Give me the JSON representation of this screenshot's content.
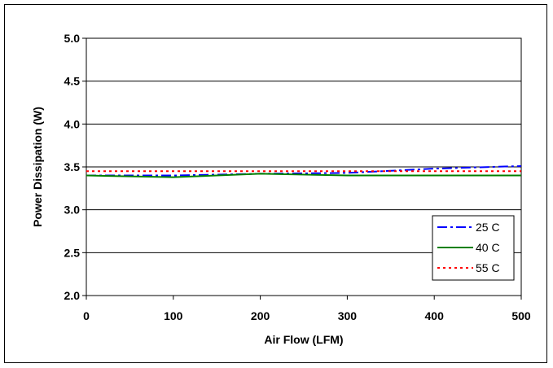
{
  "chart_data": {
    "type": "line",
    "title": "",
    "xlabel": "Air Flow (LFM)",
    "ylabel": "Power Dissipation (W)",
    "xlim": [
      0,
      500
    ],
    "ylim": [
      2.0,
      5.0
    ],
    "x_ticks": [
      "0",
      "100",
      "200",
      "300",
      "400",
      "500"
    ],
    "y_ticks": [
      "2.0",
      "2.5",
      "3.0",
      "3.5",
      "4.0",
      "4.5",
      "5.0"
    ],
    "grid": "horizontal",
    "legend_position": "bottom-right",
    "series": [
      {
        "name": "25 C",
        "color": "#0000ff",
        "dash": "dash-dot",
        "x": [
          0,
          100,
          200,
          300,
          400,
          500
        ],
        "y": [
          3.4,
          3.4,
          3.42,
          3.43,
          3.48,
          3.51
        ]
      },
      {
        "name": "40 C",
        "color": "#008000",
        "dash": "solid",
        "x": [
          0,
          100,
          200,
          300,
          400,
          500
        ],
        "y": [
          3.4,
          3.38,
          3.42,
          3.4,
          3.4,
          3.4
        ]
      },
      {
        "name": "55 C",
        "color": "#ff0000",
        "dash": "dotted",
        "x": [
          0,
          100,
          200,
          300,
          400,
          500
        ],
        "y": [
          3.45,
          3.45,
          3.45,
          3.45,
          3.45,
          3.45
        ]
      }
    ]
  }
}
